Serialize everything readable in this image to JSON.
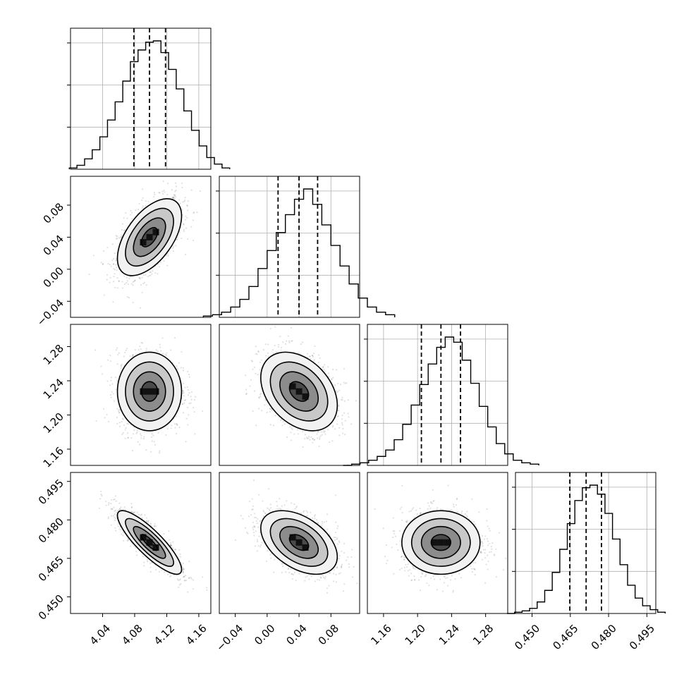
{
  "chart_data": {
    "type": "corner",
    "parameters": [
      {
        "key": "p0",
        "ticks": [
          4.04,
          4.08,
          4.12,
          4.16
        ],
        "range": [
          4.0,
          4.175
        ],
        "quantiles": [
          4.079,
          4.0985,
          4.1185
        ],
        "mean": 4.0985,
        "sd": 0.02
      },
      {
        "key": "p1",
        "ticks": [
          -0.04,
          0.0,
          0.04,
          0.08
        ],
        "range": [
          -0.06,
          0.116
        ],
        "quantiles": [
          0.0137,
          0.04,
          0.0633
        ],
        "mean": 0.04,
        "sd": 0.024
      },
      {
        "key": "p2",
        "ticks": [
          1.16,
          1.2,
          1.24,
          1.28
        ],
        "range": [
          1.141,
          1.306
        ],
        "quantiles": [
          1.2045,
          1.2275,
          1.2505
        ],
        "mean": 1.2275,
        "sd": 0.023
      },
      {
        "key": "p3",
        "ticks": [
          0.45,
          0.465,
          0.48,
          0.495
        ],
        "range": [
          0.4435,
          0.4985
        ],
        "quantiles": [
          0.4648,
          0.4712,
          0.4772
        ],
        "mean": 0.4712,
        "sd": 0.0062
      }
    ],
    "tick_labels": {
      "p0": [
        "4.04",
        "4.08",
        "4.12",
        "4.16"
      ],
      "p1": [
        "−0.04",
        "0.00",
        "0.04",
        "0.08"
      ],
      "p2": [
        "1.16",
        "1.20",
        "1.24",
        "1.28"
      ],
      "p3": [
        "0.450",
        "0.465",
        "0.480",
        "0.495"
      ]
    },
    "correlations": {
      "p1_p0": 0.55,
      "p2_p0": 0.0,
      "p2_p1": -0.35,
      "p3_p0": -0.85,
      "p3_p1": -0.45,
      "p3_p2": 0.0
    },
    "histograms": {
      "p0": [
        1,
        3,
        8,
        15,
        25,
        38,
        52,
        68,
        83,
        92,
        98,
        99,
        90,
        77,
        62,
        45,
        30,
        18,
        9,
        4,
        1
      ],
      "p1": [
        1,
        2,
        4,
        8,
        14,
        24,
        38,
        52,
        66,
        80,
        92,
        100,
        88,
        72,
        56,
        40,
        26,
        15,
        8,
        4,
        2
      ],
      "p2": [
        0,
        1,
        2,
        4,
        7,
        12,
        20,
        32,
        47,
        63,
        79,
        92,
        100,
        96,
        82,
        64,
        46,
        30,
        17,
        9,
        4,
        2,
        1
      ],
      "p3": [
        0,
        1,
        2,
        4,
        9,
        18,
        32,
        50,
        70,
        88,
        98,
        100,
        93,
        78,
        58,
        38,
        22,
        12,
        6,
        3,
        1
      ]
    },
    "contour_levels_sigma": [
      0.5,
      1.0,
      1.5,
      2.0
    ],
    "grid": true,
    "xlabel": "",
    "ylabel": "",
    "title": ""
  }
}
